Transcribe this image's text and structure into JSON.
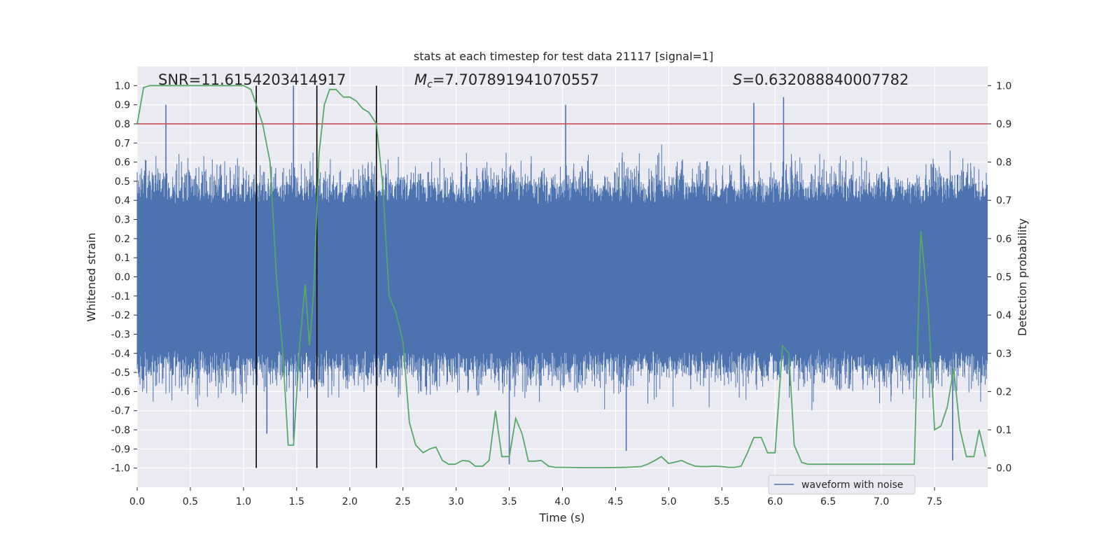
{
  "chart_data": {
    "type": "line",
    "title": "stats at each timestep for test data 21117 [signal=1]",
    "xlabel": "Time (s)",
    "ylabel_left": "Whitened strain",
    "ylabel_right": "Detection probability",
    "xlim": [
      0,
      8.0
    ],
    "ylim_left": [
      -1.1,
      1.1
    ],
    "ylim_right": [
      -0.05,
      1.05
    ],
    "x_ticks": [
      "0.0",
      "0.5",
      "1.0",
      "1.5",
      "2.0",
      "2.5",
      "3.0",
      "3.5",
      "4.0",
      "4.5",
      "5.0",
      "5.5",
      "6.0",
      "6.5",
      "7.0",
      "7.5"
    ],
    "y_ticks_left": [
      "1.0",
      "0.9",
      "0.8",
      "0.7",
      "0.6",
      "0.5",
      "0.4",
      "0.3",
      "0.2",
      "0.1",
      "0.0",
      "-0.1",
      "-0.2",
      "-0.3",
      "-0.4",
      "-0.5",
      "-0.6",
      "-0.7",
      "-0.8",
      "-0.9",
      "-1.0"
    ],
    "y_ticks_right": [
      "1.0",
      "0.9",
      "0.8",
      "0.7",
      "0.6",
      "0.5",
      "0.4",
      "0.3",
      "0.2",
      "0.1",
      "0.0"
    ],
    "annotations": {
      "snr": "SNR=11.6154203414917",
      "mc_symbol": "M",
      "mc_sub": "c",
      "mc_value": "=7.707891941070557",
      "s_symbol": "S",
      "s_value": "=0.632088840007782"
    },
    "legend": [
      {
        "label": "waveform with noise",
        "color": "#4c72b0"
      }
    ],
    "threshold_line": {
      "y_right": 0.9,
      "color": "#c44e52"
    },
    "vertical_lines": [
      1.12,
      1.69,
      2.25
    ],
    "series": [
      {
        "name": "waveform with noise",
        "axis": "left",
        "color": "#4c72b0",
        "envelope_extremes": [
          {
            "x": 0.27,
            "y": 0.9
          },
          {
            "x": 1.47,
            "y": 1.0
          },
          {
            "x": 4.03,
            "y": 0.9
          },
          {
            "x": 5.8,
            "y": 0.91
          },
          {
            "x": 6.08,
            "y": 0.94
          },
          {
            "x": 1.22,
            "y": -0.82
          },
          {
            "x": 1.47,
            "y": -0.85
          },
          {
            "x": 3.5,
            "y": -0.98
          },
          {
            "x": 4.6,
            "y": -0.91
          },
          {
            "x": 7.67,
            "y": -0.96
          }
        ]
      },
      {
        "name": "detection probability",
        "axis": "right",
        "color": "#55a868",
        "x": [
          0.0,
          0.06,
          0.12,
          0.25,
          0.5,
          0.75,
          1.0,
          1.07,
          1.12,
          1.18,
          1.25,
          1.31,
          1.37,
          1.42,
          1.47,
          1.53,
          1.58,
          1.62,
          1.66,
          1.71,
          1.76,
          1.81,
          1.87,
          1.94,
          2.0,
          2.06,
          2.12,
          2.18,
          2.25,
          2.31,
          2.37,
          2.43,
          2.5,
          2.56,
          2.62,
          2.69,
          2.75,
          2.81,
          2.87,
          2.93,
          2.99,
          3.06,
          3.12,
          3.18,
          3.25,
          3.31,
          3.37,
          3.43,
          3.5,
          3.56,
          3.62,
          3.68,
          3.74,
          3.8,
          3.87,
          3.93,
          4.0,
          4.2,
          4.4,
          4.6,
          4.74,
          4.8,
          4.87,
          4.93,
          5.0,
          5.05,
          5.12,
          5.18,
          5.25,
          5.31,
          5.37,
          5.43,
          5.5,
          5.56,
          5.62,
          5.68,
          5.74,
          5.8,
          5.87,
          5.93,
          6.0,
          6.07,
          6.13,
          6.18,
          6.25,
          6.31,
          6.37,
          6.43,
          6.5,
          6.56,
          6.62,
          6.68,
          6.74,
          6.8,
          6.87,
          6.93,
          7.0,
          7.06,
          7.12,
          7.18,
          7.25,
          7.31,
          7.37,
          7.44,
          7.5,
          7.56,
          7.62,
          7.68,
          7.74,
          7.8,
          7.87,
          7.92,
          7.98
        ],
        "y": [
          0.9,
          0.995,
          1.0,
          1.0,
          1.0,
          1.0,
          1.0,
          0.99,
          0.95,
          0.9,
          0.8,
          0.5,
          0.3,
          0.06,
          0.06,
          0.33,
          0.48,
          0.32,
          0.46,
          0.82,
          0.95,
          0.99,
          0.99,
          0.97,
          0.97,
          0.96,
          0.94,
          0.93,
          0.9,
          0.74,
          0.45,
          0.41,
          0.33,
          0.12,
          0.06,
          0.04,
          0.05,
          0.055,
          0.02,
          0.01,
          0.01,
          0.02,
          0.018,
          0.005,
          0.005,
          0.02,
          0.15,
          0.03,
          0.03,
          0.13,
          0.09,
          0.018,
          0.018,
          0.02,
          0.005,
          0.002,
          0.002,
          0.001,
          0.001,
          0.002,
          0.004,
          0.01,
          0.02,
          0.03,
          0.012,
          0.015,
          0.02,
          0.012,
          0.005,
          0.004,
          0.004,
          0.005,
          0.004,
          0.002,
          0.002,
          0.005,
          0.04,
          0.08,
          0.08,
          0.04,
          0.04,
          0.32,
          0.3,
          0.06,
          0.015,
          0.01,
          0.01,
          0.01,
          0.01,
          0.01,
          0.01,
          0.01,
          0.01,
          0.01,
          0.01,
          0.01,
          0.01,
          0.01,
          0.01,
          0.01,
          0.01,
          0.01,
          0.62,
          0.42,
          0.1,
          0.11,
          0.16,
          0.26,
          0.1,
          0.03,
          0.03,
          0.1,
          0.03
        ]
      }
    ]
  },
  "colors": {
    "plot_bg": "#eaeaf2",
    "grid": "#ffffff",
    "waveform": "#4c72b0",
    "probability": "#55a868",
    "threshold": "#c44e52",
    "vline": "#000000"
  }
}
